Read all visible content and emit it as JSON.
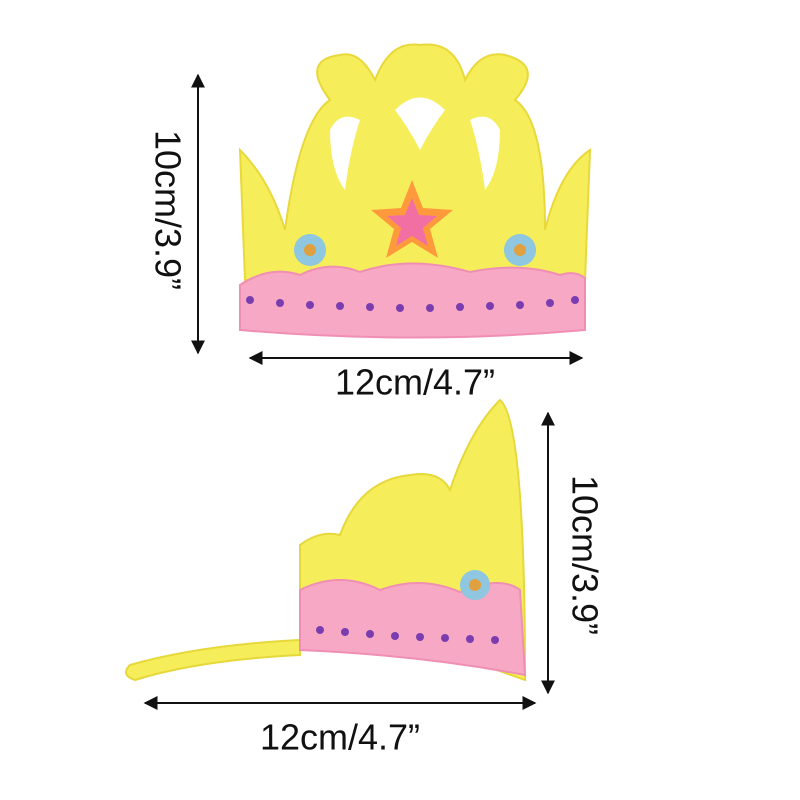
{
  "labels": {
    "top_height": "10cm/3.9”",
    "top_width": "12cm/4.7”",
    "bottom_height": "10cm/3.9”",
    "bottom_width": "12cm/4.7”"
  }
}
